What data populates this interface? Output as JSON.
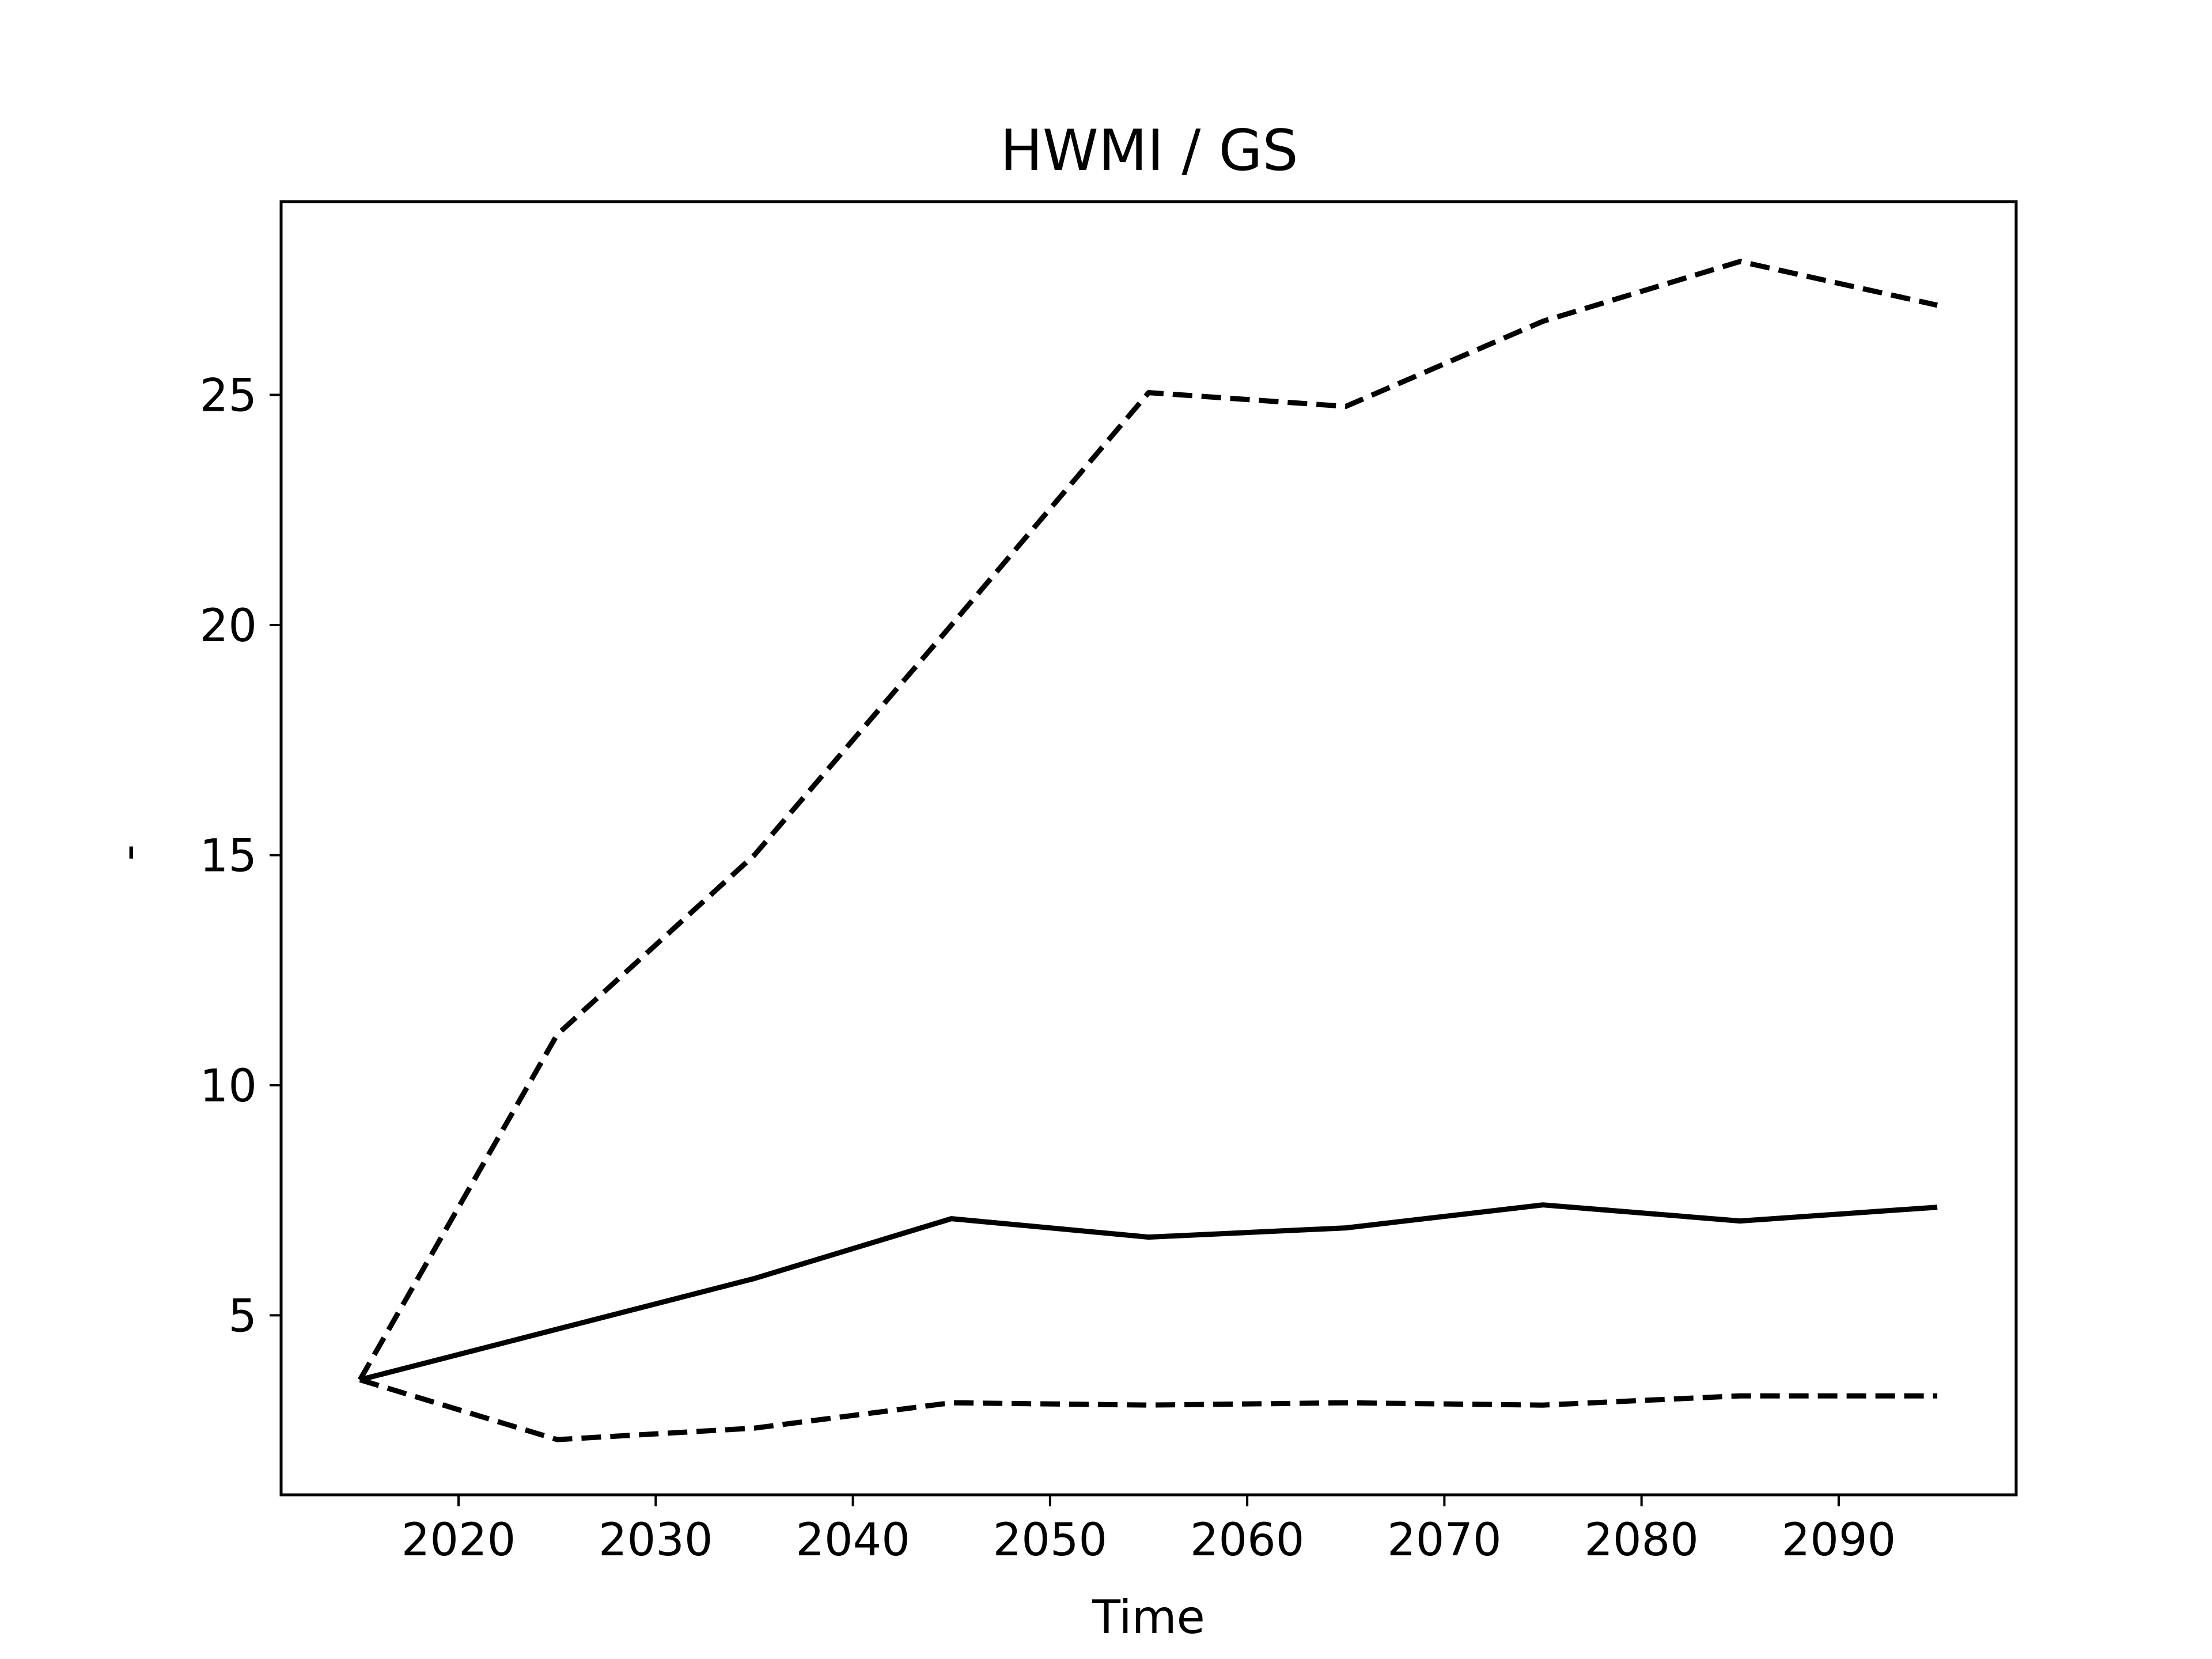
{
  "chart_data": {
    "type": "line",
    "title": "HWMI / GS",
    "xlabel": "Time",
    "ylabel": "-",
    "x": [
      2015,
      2025,
      2035,
      2045,
      2055,
      2065,
      2075,
      2085,
      2095
    ],
    "series": [
      {
        "style": "solid",
        "color": "#000000",
        "values": [
          3.6,
          4.7,
          5.8,
          7.1,
          6.7,
          6.9,
          7.4,
          7.05,
          7.35
        ]
      },
      {
        "style": "dashed",
        "color": "#000000",
        "values": [
          3.6,
          11.1,
          15.0,
          20.0,
          25.05,
          24.75,
          26.6,
          27.9,
          26.95
        ]
      },
      {
        "style": "dashed",
        "color": "#000000",
        "values": [
          3.6,
          2.3,
          2.55,
          3.1,
          3.05,
          3.1,
          3.05,
          3.25,
          3.25
        ]
      }
    ],
    "xlim": [
      2011,
      2099
    ],
    "ylim": [
      1.1,
      29.2
    ],
    "xticks": [
      "2020",
      "2030",
      "2040",
      "2050",
      "2060",
      "2070",
      "2080",
      "2090"
    ],
    "yticks": [
      "5",
      "10",
      "15",
      "20",
      "25"
    ],
    "grid": false,
    "legend": "none"
  }
}
